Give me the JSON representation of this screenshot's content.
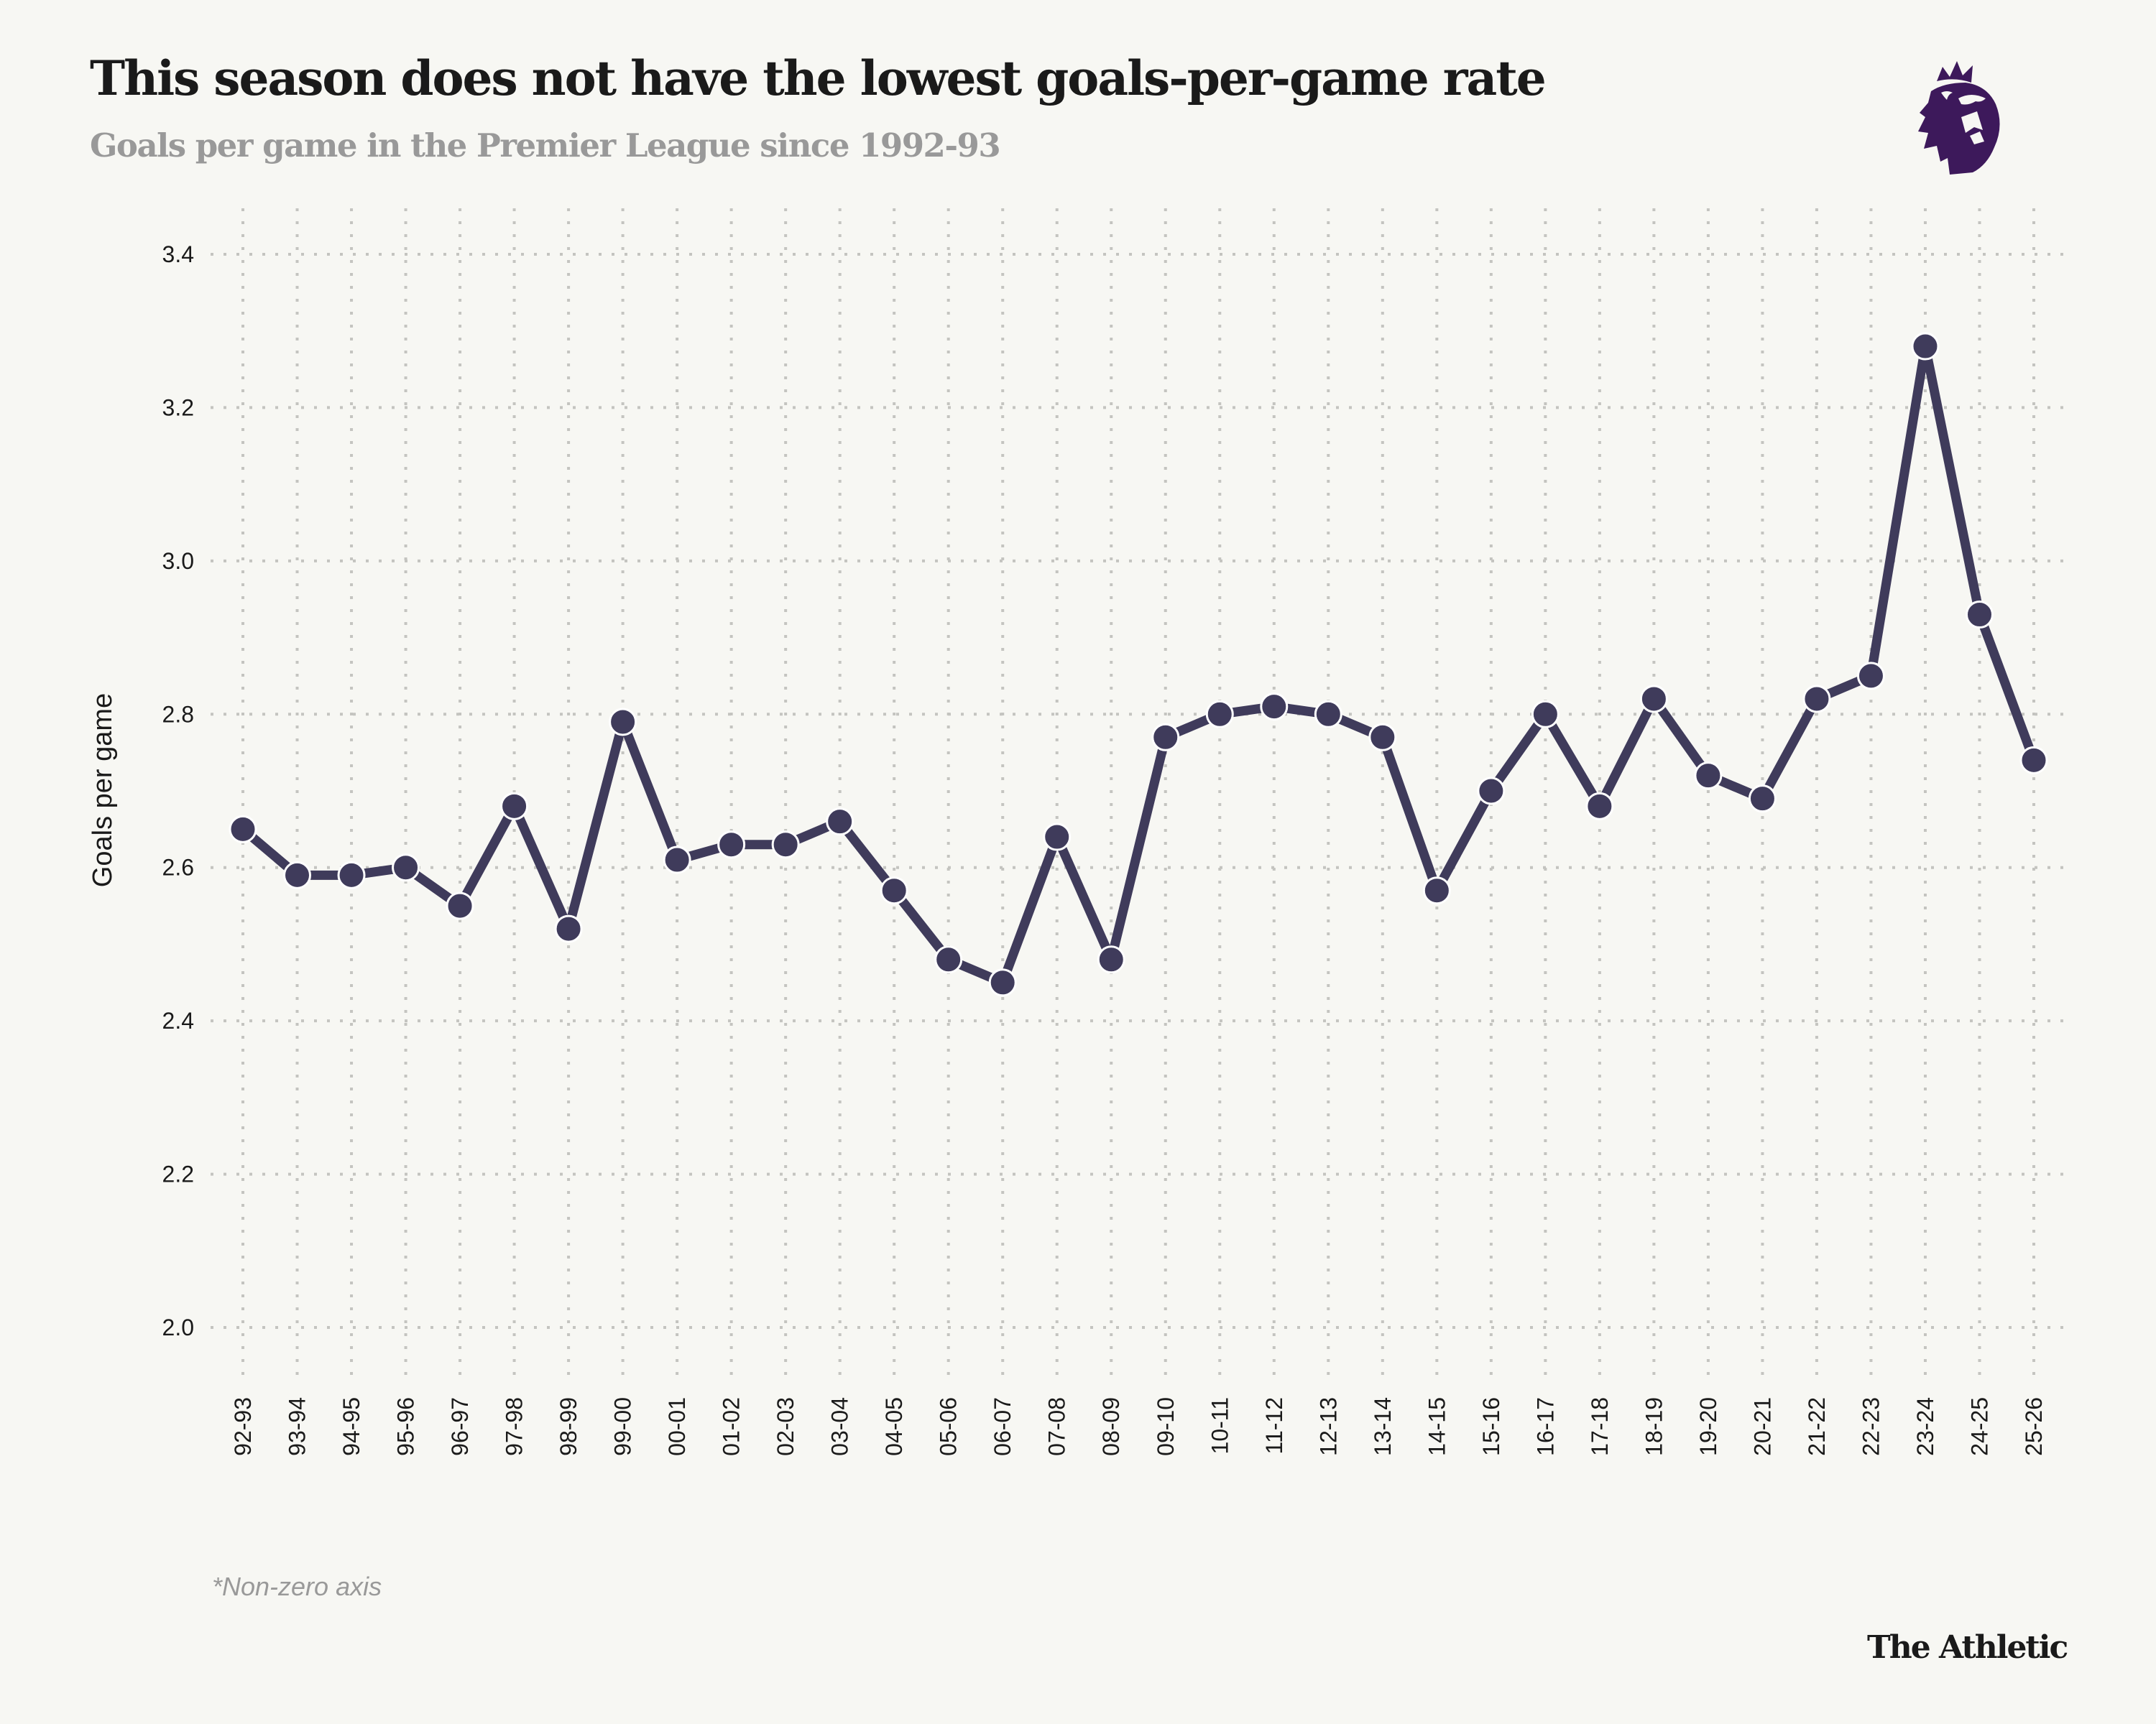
{
  "header": {
    "title": "This season does not have the lowest goals-per-game rate",
    "subtitle": "Goals per game in the Premier League since 1992-93",
    "logo_icon": "premier-league-lion-icon",
    "logo_color": "#3d195b"
  },
  "footer": {
    "note": "*Non-zero axis",
    "brand": "The Athletic"
  },
  "colors": {
    "background": "#f7f7f3",
    "line": "#3f3b5b",
    "grid": "#c4c4c0",
    "text": "#1a1a1a",
    "muted": "#999999"
  },
  "chart_data": {
    "type": "line",
    "title": "This season does not have the lowest goals-per-game rate",
    "subtitle": "Goals per game in the Premier League since 1992-93",
    "xlabel": "",
    "ylabel": "Goals per game",
    "ylim": [
      2.0,
      3.4
    ],
    "yticks": [
      "2.0",
      "2.2",
      "2.4",
      "2.6",
      "2.8",
      "3.0",
      "3.2",
      "3.4"
    ],
    "grid": true,
    "grid_style": "dotted",
    "legend": "none",
    "annotation": "*Non-zero axis",
    "categories": [
      "92-93",
      "93-94",
      "94-95",
      "95-96",
      "96-97",
      "97-98",
      "98-99",
      "99-00",
      "00-01",
      "01-02",
      "02-03",
      "03-04",
      "04-05",
      "05-06",
      "06-07",
      "07-08",
      "08-09",
      "09-10",
      "10-11",
      "11-12",
      "12-13",
      "13-14",
      "14-15",
      "15-16",
      "16-17",
      "17-18",
      "18-19",
      "19-20",
      "20-21",
      "21-22",
      "22-23",
      "23-24",
      "24-25",
      "25-26"
    ],
    "series": [
      {
        "name": "Goals per game",
        "values": [
          2.65,
          2.59,
          2.59,
          2.6,
          2.55,
          2.68,
          2.52,
          2.79,
          2.61,
          2.63,
          2.63,
          2.66,
          2.57,
          2.48,
          2.45,
          2.64,
          2.48,
          2.77,
          2.8,
          2.81,
          2.8,
          2.77,
          2.57,
          2.7,
          2.8,
          2.68,
          2.82,
          2.72,
          2.69,
          2.82,
          2.85,
          3.28,
          2.93,
          2.74
        ]
      }
    ]
  }
}
